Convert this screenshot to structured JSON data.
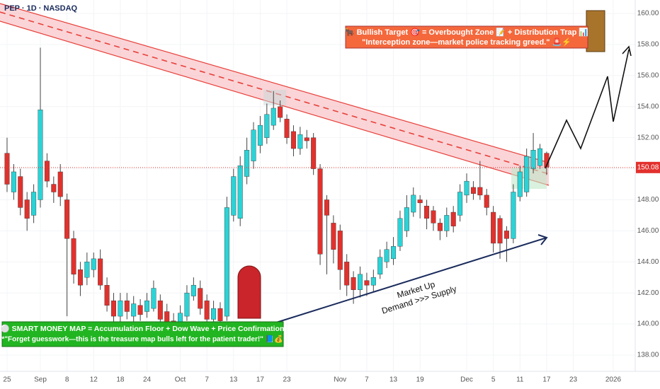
{
  "chart_data": {
    "type": "candlestick",
    "title": "PEP · 1D · NASDAQ",
    "up_color": "#2bd3d6",
    "down_color": "#e2312d",
    "x": [
      0,
      1,
      2,
      3,
      4,
      5,
      6,
      7,
      8,
      9,
      10,
      11,
      12,
      13,
      14,
      15,
      16,
      17,
      18,
      19,
      20,
      21,
      22,
      23,
      24,
      25,
      26,
      27,
      28,
      29,
      30,
      31,
      32,
      33,
      34,
      35,
      36,
      37,
      38,
      39,
      40,
      41,
      42,
      43,
      44,
      45,
      46,
      47,
      48,
      49,
      50,
      51,
      52,
      53,
      54,
      55,
      56,
      57,
      58,
      59,
      60,
      61,
      62,
      63,
      64,
      65,
      66,
      67,
      68,
      69,
      70,
      71,
      72,
      73,
      74,
      75,
      76,
      77,
      78,
      79,
      80,
      81
    ],
    "open": [
      151,
      148.5,
      149.5,
      148,
      147,
      148,
      150.5,
      149,
      149.8,
      148,
      145.5,
      143.5,
      143,
      143.5,
      144.2,
      142.5,
      141.5,
      140.5,
      141.5,
      140.5,
      141.2,
      140.8,
      141,
      141.5,
      140.8,
      140.2,
      139.8,
      140.5,
      141.8,
      142.3,
      141.5,
      140.3,
      141,
      140.5,
      147,
      146.8,
      149.5,
      150.5,
      151.5,
      152,
      152.8,
      154,
      153.2,
      152.4,
      151.3,
      152,
      152,
      150,
      148,
      146.5,
      146,
      144,
      143,
      142.2,
      142.8,
      142.5,
      143.2,
      144,
      144.2,
      145,
      146,
      147.2,
      148,
      147.6,
      147.3,
      146.5,
      146,
      147.2,
      147,
      148.3,
      148.8,
      148.8,
      148.3,
      147.2,
      146.8,
      146,
      145.5,
      148.2,
      148.5,
      150,
      150.2,
      151
    ],
    "close": [
      149,
      149.8,
      147.5,
      146.8,
      148.5,
      153.8,
      149.2,
      148.5,
      148.2,
      145.5,
      143.2,
      142.5,
      144,
      144.2,
      142.5,
      141.2,
      140.5,
      141.5,
      140.8,
      141.3,
      140.6,
      141.5,
      142.3,
      140.3,
      139.8,
      139.5,
      140.7,
      142,
      142.5,
      141,
      140.3,
      141,
      140.2,
      147.5,
      149.5,
      150.2,
      151.2,
      152.5,
      152.8,
      153.5,
      153.9,
      153.3,
      152,
      151.3,
      152.2,
      151.8,
      150,
      144.5,
      147,
      144.8,
      143.5,
      142.5,
      142.2,
      143.2,
      142.5,
      143,
      144.3,
      144.8,
      145,
      146.8,
      147.5,
      148.3,
      147.8,
      146.8,
      146.5,
      146,
      147,
      146.3,
      148.5,
      149.2,
      148.4,
      148.3,
      147.5,
      145.2,
      145.2,
      145.5,
      148.5,
      149.8,
      150.8,
      151.2,
      151.3,
      150.1
    ],
    "high": [
      152,
      150.3,
      150,
      148.5,
      149,
      157.8,
      151,
      149.5,
      150.3,
      148.4,
      146,
      144,
      144.6,
      144.6,
      144.8,
      143,
      142,
      142,
      142,
      141.8,
      141.6,
      142,
      142.8,
      141.9,
      141.3,
      140.7,
      141.2,
      142.5,
      143,
      142.8,
      141.9,
      141.5,
      141.4,
      148.2,
      150,
      150.8,
      152,
      153,
      153.4,
      154.2,
      155,
      154.4,
      153.5,
      152.8,
      152.7,
      152.5,
      152.3,
      150.3,
      148.3,
      147,
      146.4,
      144.5,
      143.4,
      143.7,
      143.3,
      143.5,
      144.8,
      145.3,
      145.6,
      147.3,
      148.3,
      148.8,
      148.3,
      148,
      147.6,
      146.8,
      147.5,
      147.6,
      149,
      149.7,
      149.2,
      150.5,
      148.7,
      147.6,
      147,
      146.3,
      149,
      150.2,
      151.3,
      152.3,
      151.6,
      151.1
    ],
    "low": [
      148.5,
      148,
      147,
      146,
      146.5,
      147.5,
      148.8,
      147.8,
      147.6,
      140.5,
      142.6,
      141.8,
      142.5,
      143,
      142.2,
      140.8,
      140,
      140.1,
      140.3,
      140,
      140.2,
      140.4,
      140.8,
      139.9,
      139.4,
      139,
      139.5,
      140.2,
      141.5,
      140.6,
      139.8,
      140,
      139.8,
      140.2,
      146.6,
      146.3,
      149,
      150,
      151,
      151.6,
      152.5,
      153,
      151.6,
      150.8,
      150.9,
      151.3,
      149.6,
      143.8,
      143.2,
      143.9,
      142.2,
      141.8,
      141.3,
      141.7,
      141.8,
      142.1,
      142.9,
      143.6,
      143.8,
      144.7,
      145.6,
      146.9,
      146.8,
      146.1,
      146,
      145.4,
      145.6,
      145.9,
      146.6,
      147.8,
      148,
      148,
      147,
      144.6,
      144.2,
      144,
      145.2,
      147.9,
      148.2,
      149.7,
      150,
      149.6
    ],
    "xlim": [
      -1.06,
      94.3
    ],
    "xticks": [
      {
        "value": 0,
        "label": "25"
      },
      {
        "value": 5,
        "label": "Sep"
      },
      {
        "value": 9,
        "label": "8"
      },
      {
        "value": 13,
        "label": "12"
      },
      {
        "value": 17,
        "label": "18"
      },
      {
        "value": 21,
        "label": "24"
      },
      {
        "value": 26,
        "label": "Oct"
      },
      {
        "value": 30,
        "label": "7"
      },
      {
        "value": 34,
        "label": "13"
      },
      {
        "value": 38,
        "label": "17"
      },
      {
        "value": 42,
        "label": "23"
      },
      {
        "value": 50,
        "label": "Nov"
      },
      {
        "value": 54,
        "label": "7"
      },
      {
        "value": 58,
        "label": "13"
      },
      {
        "value": 62,
        "label": "19"
      },
      {
        "value": 69,
        "label": "Dec"
      },
      {
        "value": 73,
        "label": "5"
      },
      {
        "value": 77,
        "label": "11"
      },
      {
        "value": 81,
        "label": "17"
      },
      {
        "value": 85,
        "label": "23"
      },
      {
        "value": 91,
        "label": "2026"
      }
    ],
    "ylim": [
      136.95,
      160.87
    ],
    "yticks": [
      {
        "value": 138,
        "label": "138.00"
      },
      {
        "value": 140,
        "label": "140.00"
      },
      {
        "value": 142,
        "label": "142.00"
      },
      {
        "value": 144,
        "label": "144.00"
      },
      {
        "value": 146,
        "label": "146.00"
      },
      {
        "value": 148,
        "label": "148.00"
      },
      {
        "value": 150,
        "label": "150.00"
      },
      {
        "value": 152,
        "label": "152.00"
      },
      {
        "value": 154,
        "label": "154.00"
      },
      {
        "value": 156,
        "label": "156.00"
      },
      {
        "value": 158,
        "label": "158.00"
      },
      {
        "value": 160,
        "label": "160.00"
      }
    ],
    "last_price": 150.08,
    "annotations": {
      "top_line1": "🐂 Bullish Target 🎯 = Overbought Zone 📝 + Distribution Trap 📊",
      "top_line2": "\"Interception zone—market police tracking greed.\" 🚨⚡",
      "bottom_line1": "⚪ SMART MONEY MAP = Accumulation Floor + Dow Wave + Price Confirmation",
      "bottom_line2": "*\"Forget guesswork—this is the treasure map bulls left for the patient trader!\" 📘💰",
      "arrow_line1": "Market Up",
      "arrow_line2": "Demand >>> Supply"
    }
  }
}
